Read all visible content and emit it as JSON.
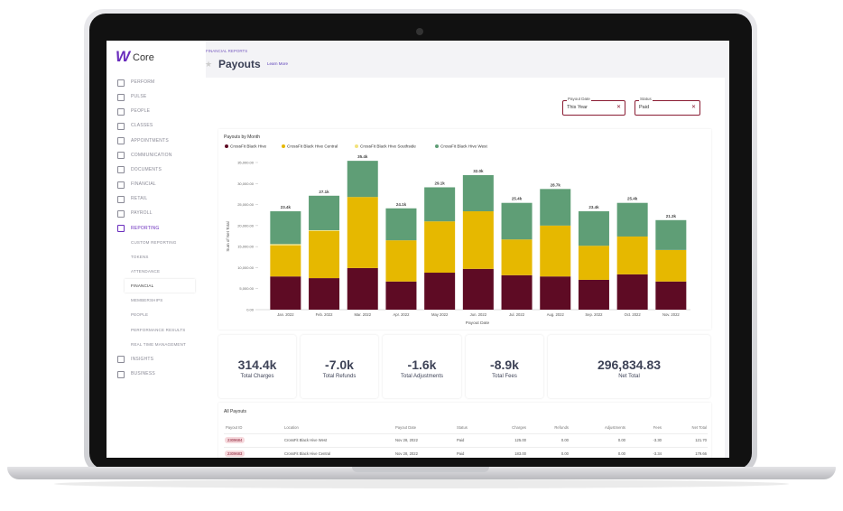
{
  "sidebar": {
    "logo_mark": "W",
    "logo": "Core",
    "items": [
      "PERFORM",
      "PULSE",
      "PEOPLE",
      "CLASSES",
      "APPOINTMENTS",
      "COMMUNICATION",
      "DOCUMENTS",
      "FINANCIAL",
      "RETAIL",
      "PAYROLL",
      "REPORTING",
      "CUSTOM REPORTING",
      "TOKENS",
      "ATTENDANCE",
      "FINANCIAL",
      "MEMBERSHIPS",
      "PEOPLE",
      "PERFORMANCE RESULTS",
      "REAL TIME MANAGEMENT",
      "INSIGHTS",
      "BUSINESS"
    ]
  },
  "header": {
    "breadcrumb": "FINANCIAL REPORTS",
    "title": "Payouts",
    "link": "Learn More"
  },
  "filters": [
    {
      "label": "Payout Date",
      "value": "This Year"
    },
    {
      "label": "Status",
      "value": "Paid"
    }
  ],
  "chart_data": {
    "type": "stacked_bar",
    "title": "Payouts by Month",
    "y_label": "Sum of Net Total",
    "x_label": "Payout Date",
    "categories": [
      "Jan. 2022",
      "Feb. 2022",
      "Mar. 2022",
      "Apr. 2022",
      "May 2022",
      "Jun. 2022",
      "Jul. 2022",
      "Aug. 2022",
      "Sep. 2022",
      "Oct. 2022",
      "Nov. 2022"
    ],
    "series": [
      {
        "name": "CrossFit Black Hive",
        "color": "#5e0b24",
        "values": [
          7900,
          7500,
          9900,
          6700,
          8800,
          9700,
          8200,
          7900,
          7100,
          8400,
          6700
        ]
      },
      {
        "name": "CrossFit Black Hive Central",
        "color": "#e6b800",
        "values": [
          7400,
          11200,
          16900,
          9800,
          12200,
          13700,
          8500,
          12100,
          8100,
          9000,
          7500
        ]
      },
      {
        "name": "CrossFit Black Hive Southside",
        "color": "#f2e27c",
        "values": [
          300,
          200,
          0,
          0,
          0,
          0,
          0,
          0,
          0,
          0,
          0
        ]
      },
      {
        "name": "CrossFit Black Hive West",
        "color": "#5f9e76",
        "values": [
          7800,
          8200,
          8600,
          7600,
          8100,
          8600,
          8700,
          8700,
          8200,
          8000,
          7100
        ]
      }
    ],
    "total_labels": [
      "23.4k",
      "27.1k",
      "35.4k",
      "24.1k",
      "29.1k",
      "32.0k",
      "25.4k",
      "28.7k",
      "23.4k",
      "25.4k",
      "21.3k"
    ],
    "ylim": [
      0,
      35000
    ],
    "yticks": [
      {
        "value": 0,
        "label": "0.00"
      },
      {
        "value": 5000,
        "label": "5,000.00"
      },
      {
        "value": 10000,
        "label": "10,000.00"
      },
      {
        "value": 15000,
        "label": "15,000.00"
      },
      {
        "value": 20000,
        "label": "20,000.00"
      },
      {
        "value": 25000,
        "label": "25,000.00"
      },
      {
        "value": 30000,
        "label": "30,000.00"
      },
      {
        "value": 35000,
        "label": "35,000.00"
      }
    ]
  },
  "cards": [
    {
      "value": "314.4k",
      "label": "Total Charges"
    },
    {
      "value": "-7.0k",
      "label": "Total Refunds"
    },
    {
      "value": "-1.6k",
      "label": "Total Adjustments"
    },
    {
      "value": "-8.9k",
      "label": "Total Fees"
    },
    {
      "value": "296,834.83",
      "label": "Net Total"
    }
  ],
  "table": {
    "title": "All Payouts",
    "columns": [
      "Payout ID",
      "Location",
      "Payout Date",
      "Status",
      "Charges",
      "Refunds",
      "Adjustments",
      "Fees",
      "Net Total"
    ],
    "rows": [
      [
        "2309684",
        "CrossFit Black Hive West",
        "Nov 28, 2022",
        "Paid",
        "125.00",
        "0.00",
        "0.00",
        "-3.30",
        "121.70"
      ],
      [
        "2309683",
        "CrossFit Black Hive Central",
        "Nov 28, 2022",
        "Paid",
        "183.00",
        "0.00",
        "0.00",
        "-3.34",
        "179.66"
      ]
    ]
  }
}
